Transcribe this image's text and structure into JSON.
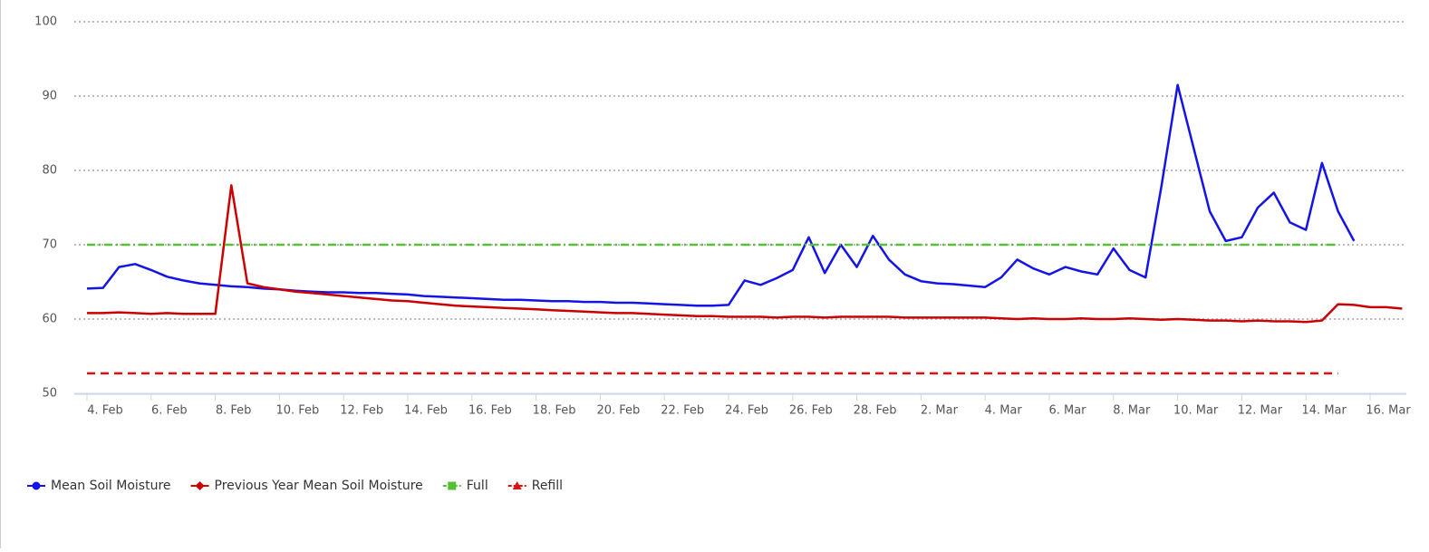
{
  "chart_data": {
    "type": "line",
    "categories": [
      "4. Feb",
      null,
      null,
      null,
      "6. Feb",
      null,
      null,
      null,
      "8. Feb",
      null,
      null,
      null,
      "10. Feb",
      null,
      null,
      null,
      "12. Feb",
      null,
      null,
      null,
      "14. Feb",
      null,
      null,
      null,
      "16. Feb",
      null,
      null,
      null,
      "18. Feb",
      null,
      null,
      null,
      "20. Feb",
      null,
      null,
      null,
      "22. Feb",
      null,
      null,
      null,
      "24. Feb",
      null,
      null,
      null,
      "26. Feb",
      null,
      null,
      null,
      "28. Feb",
      null,
      null,
      null,
      "2. Mar",
      null,
      null,
      null,
      "4. Mar",
      null,
      null,
      null,
      "6. Mar",
      null,
      null,
      null,
      "8. Mar",
      null,
      null,
      null,
      "10. Mar",
      null,
      null,
      null,
      "12. Mar",
      null,
      null,
      null,
      "14. Mar",
      null,
      null,
      null,
      "16. Mar",
      null,
      null
    ],
    "ylim": [
      50,
      100
    ],
    "yticks": [
      50,
      60,
      70,
      80,
      90,
      100
    ],
    "grid": true,
    "series": [
      {
        "name": "Mean Soil Moisture",
        "color": "#1414e6",
        "marker": "circle",
        "dash": "solid",
        "values": [
          64.1,
          64.2,
          67.0,
          67.4,
          66.6,
          65.7,
          65.2,
          64.8,
          64.6,
          64.4,
          64.3,
          64.1,
          64.0,
          63.8,
          63.7,
          63.6,
          63.6,
          63.5,
          63.5,
          63.4,
          63.3,
          63.1,
          63.0,
          62.9,
          62.8,
          62.7,
          62.6,
          62.6,
          62.5,
          62.4,
          62.4,
          62.3,
          62.3,
          62.2,
          62.2,
          62.1,
          62.0,
          61.9,
          61.8,
          61.8,
          61.9,
          65.2,
          64.6,
          65.5,
          66.6,
          71.0,
          66.2,
          70.0,
          67.0,
          71.2,
          68.0,
          66.0,
          65.1,
          64.8,
          64.7,
          64.5,
          64.3,
          65.6,
          68.0,
          66.8,
          66.0,
          67.0,
          66.4,
          66.0,
          69.5,
          66.6,
          65.6,
          78.0,
          91.5,
          83.0,
          74.5,
          70.5,
          71.0,
          75.0,
          77.0,
          73.0,
          72.0,
          81.0,
          74.5,
          70.5,
          null,
          null,
          null
        ]
      },
      {
        "name": "Previous Year Mean Soil Moisture",
        "color": "#cc0000",
        "marker": "diamond",
        "dash": "solid",
        "values": [
          60.8,
          60.8,
          60.9,
          60.8,
          60.7,
          60.8,
          60.7,
          60.7,
          60.7,
          78.0,
          64.8,
          64.3,
          64.0,
          63.7,
          63.5,
          63.3,
          63.1,
          62.9,
          62.7,
          62.5,
          62.4,
          62.2,
          62.0,
          61.8,
          61.7,
          61.6,
          61.5,
          61.4,
          61.3,
          61.2,
          61.1,
          61.0,
          60.9,
          60.8,
          60.8,
          60.7,
          60.6,
          60.5,
          60.4,
          60.4,
          60.3,
          60.3,
          60.3,
          60.2,
          60.3,
          60.3,
          60.2,
          60.3,
          60.3,
          60.3,
          60.3,
          60.2,
          60.2,
          60.2,
          60.2,
          60.2,
          60.2,
          60.1,
          60.0,
          60.1,
          60.0,
          60.0,
          60.1,
          60.0,
          60.0,
          60.1,
          60.0,
          59.9,
          60.0,
          59.9,
          59.8,
          59.8,
          59.7,
          59.8,
          59.7,
          59.7,
          59.6,
          59.8,
          62.0,
          61.9,
          61.6,
          61.6,
          61.4
        ]
      },
      {
        "name": "Full",
        "color": "#55c235",
        "marker": "square",
        "dash": "dashdot",
        "values": [
          70,
          70,
          70,
          70,
          70,
          70,
          70,
          70,
          70,
          70,
          70,
          70,
          70,
          70,
          70,
          70,
          70,
          70,
          70,
          70,
          70,
          70,
          70,
          70,
          70,
          70,
          70,
          70,
          70,
          70,
          70,
          70,
          70,
          70,
          70,
          70,
          70,
          70,
          70,
          70,
          70,
          70,
          70,
          70,
          70,
          70,
          70,
          70,
          70,
          70,
          70,
          70,
          70,
          70,
          70,
          70,
          70,
          70,
          70,
          70,
          70,
          70,
          70,
          70,
          70,
          70,
          70,
          70,
          70,
          70,
          70,
          70,
          70,
          70,
          70,
          70,
          70,
          70,
          70,
          null,
          null,
          null,
          null
        ]
      },
      {
        "name": "Refill",
        "color": "#dd1111",
        "marker": "triangle",
        "dash": "dash",
        "values": [
          52.7,
          52.7,
          52.7,
          52.7,
          52.7,
          52.7,
          52.7,
          52.7,
          52.7,
          52.7,
          52.7,
          52.7,
          52.7,
          52.7,
          52.7,
          52.7,
          52.7,
          52.7,
          52.7,
          52.7,
          52.7,
          52.7,
          52.7,
          52.7,
          52.7,
          52.7,
          52.7,
          52.7,
          52.7,
          52.7,
          52.7,
          52.7,
          52.7,
          52.7,
          52.7,
          52.7,
          52.7,
          52.7,
          52.7,
          52.7,
          52.7,
          52.7,
          52.7,
          52.7,
          52.7,
          52.7,
          52.7,
          52.7,
          52.7,
          52.7,
          52.7,
          52.7,
          52.7,
          52.7,
          52.7,
          52.7,
          52.7,
          52.7,
          52.7,
          52.7,
          52.7,
          52.7,
          52.7,
          52.7,
          52.7,
          52.7,
          52.7,
          52.7,
          52.7,
          52.7,
          52.7,
          52.7,
          52.7,
          52.7,
          52.7,
          52.7,
          52.7,
          52.7,
          52.7,
          null,
          null,
          null,
          null
        ]
      }
    ]
  }
}
